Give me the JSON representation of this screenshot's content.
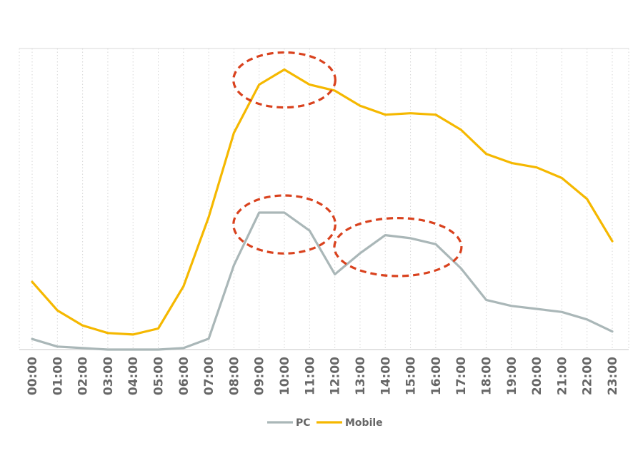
{
  "chart_data": {
    "type": "line",
    "categories": [
      "00:00",
      "01:00",
      "02:00",
      "03:00",
      "04:00",
      "05:00",
      "06:00",
      "07:00",
      "08:00",
      "09:00",
      "10:00",
      "11:00",
      "12:00",
      "13:00",
      "14:00",
      "15:00",
      "16:00",
      "17:00",
      "18:00",
      "19:00",
      "20:00",
      "21:00",
      "22:00",
      "23:00"
    ],
    "series": [
      {
        "name": "PC",
        "color": "#AAB7B8",
        "values": [
          3.5,
          1.0,
          0.5,
          0.0,
          0.0,
          0.0,
          0.5,
          3.6,
          28.0,
          45.5,
          45.5,
          39.5,
          25.0,
          32.0,
          38.0,
          37.0,
          35.0,
          27.0,
          16.5,
          14.5,
          13.5,
          12.5,
          10.0,
          6.0
        ]
      },
      {
        "name": "Mobile",
        "color": "#F5B800",
        "values": [
          22.5,
          13.0,
          8.0,
          5.5,
          5.0,
          7.0,
          21.0,
          44.0,
          72.0,
          88.0,
          93.0,
          88.0,
          86.0,
          81.0,
          78.0,
          78.5,
          78.0,
          73.0,
          65.0,
          62.0,
          60.5,
          57.0,
          50.0,
          36.0
        ]
      }
    ],
    "ylim": [
      0,
      100
    ],
    "grid": "vertical-dotted",
    "legend": "bottom-center",
    "highlights": [
      {
        "series": "Mobile",
        "x_from": "09:00",
        "x_to": "11:00",
        "color": "#D9421E"
      },
      {
        "series": "PC",
        "x_from": "09:00",
        "x_to": "11:00",
        "color": "#D9421E"
      },
      {
        "series": "PC",
        "x_from": "13:00",
        "x_to": "16:00",
        "color": "#D9421E"
      }
    ]
  }
}
